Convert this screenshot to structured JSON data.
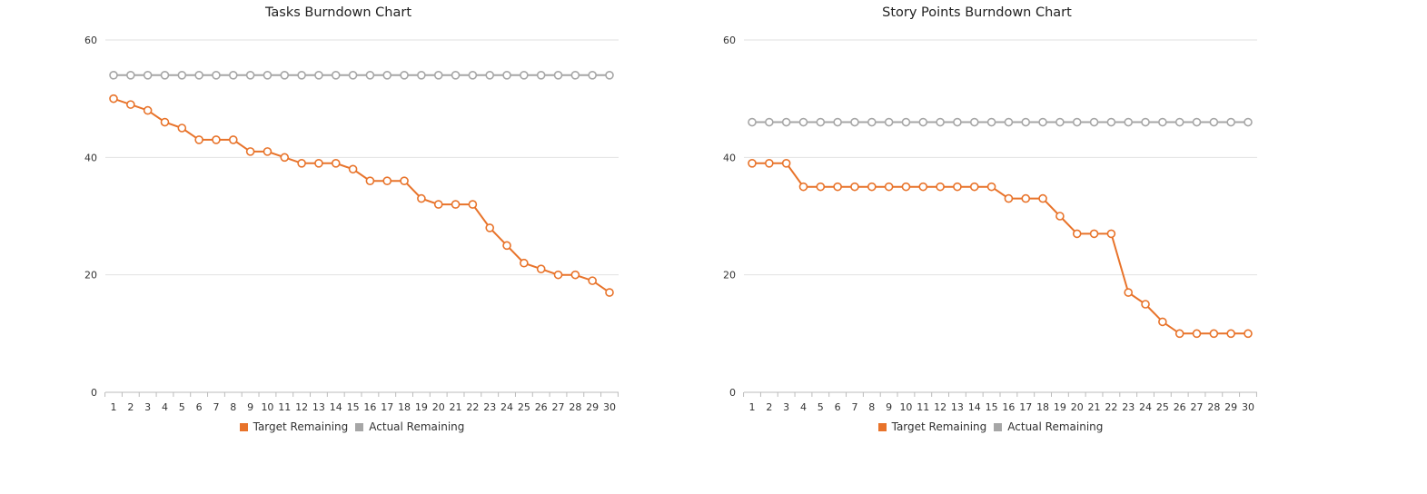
{
  "colors": {
    "target": "#e8732a",
    "actual": "#a6a6a6",
    "grid": "#e2e2e2",
    "axis": "#bbbbbb",
    "text": "#333333"
  },
  "chart_data": [
    {
      "type": "line",
      "title": "Tasks Burndown Chart",
      "xlabel": "",
      "ylabel": "",
      "x": [
        1,
        2,
        3,
        4,
        5,
        6,
        7,
        8,
        9,
        10,
        11,
        12,
        13,
        14,
        15,
        16,
        17,
        18,
        19,
        20,
        21,
        22,
        23,
        24,
        25,
        26,
        27,
        28,
        29,
        30
      ],
      "yticks": [
        0,
        20,
        40,
        60
      ],
      "ylim": [
        0,
        60
      ],
      "grid": true,
      "legend_position": "bottom",
      "series": [
        {
          "name": "Target Remaining",
          "color": "#e8732a",
          "values": [
            50,
            49,
            48,
            46,
            45,
            43,
            43,
            43,
            41,
            41,
            40,
            39,
            39,
            39,
            38,
            36,
            36,
            36,
            33,
            32,
            32,
            32,
            28,
            25,
            22,
            21,
            20,
            20,
            19,
            17
          ]
        },
        {
          "name": "Actual Remaining",
          "color": "#a6a6a6",
          "values": [
            54,
            54,
            54,
            54,
            54,
            54,
            54,
            54,
            54,
            54,
            54,
            54,
            54,
            54,
            54,
            54,
            54,
            54,
            54,
            54,
            54,
            54,
            54,
            54,
            54,
            54,
            54,
            54,
            54,
            54
          ]
        }
      ]
    },
    {
      "type": "line",
      "title": "Story Points Burndown Chart",
      "xlabel": "",
      "ylabel": "",
      "x": [
        1,
        2,
        3,
        4,
        5,
        6,
        7,
        8,
        9,
        10,
        11,
        12,
        13,
        14,
        15,
        16,
        17,
        18,
        19,
        20,
        21,
        22,
        23,
        24,
        25,
        26,
        27,
        28,
        29,
        30
      ],
      "yticks": [
        0,
        20,
        40,
        60
      ],
      "ylim": [
        0,
        60
      ],
      "grid": true,
      "legend_position": "bottom",
      "series": [
        {
          "name": "Target Remaining",
          "color": "#e8732a",
          "values": [
            39,
            39,
            39,
            35,
            35,
            35,
            35,
            35,
            35,
            35,
            35,
            35,
            35,
            35,
            35,
            33,
            33,
            33,
            30,
            27,
            27,
            27,
            17,
            15,
            12,
            10,
            10,
            10,
            10,
            10
          ]
        },
        {
          "name": "Actual Remaining",
          "color": "#a6a6a6",
          "values": [
            46,
            46,
            46,
            46,
            46,
            46,
            46,
            46,
            46,
            46,
            46,
            46,
            46,
            46,
            46,
            46,
            46,
            46,
            46,
            46,
            46,
            46,
            46,
            46,
            46,
            46,
            46,
            46,
            46,
            46
          ]
        }
      ]
    }
  ]
}
